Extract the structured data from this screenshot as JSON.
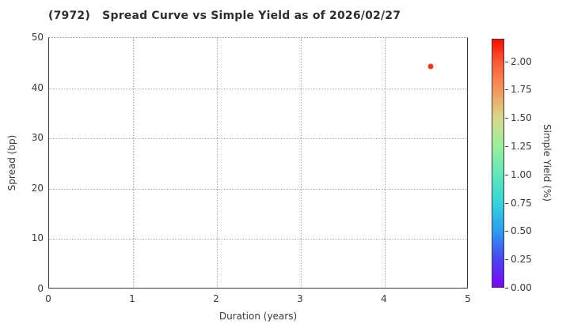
{
  "header": {
    "title": "(7972)   Spread Curve vs Simple Yield as of 2026/02/27"
  },
  "colors": {
    "background": "#ffffff",
    "spine": "#3a3a3a",
    "grid": "#b0b0b0",
    "title_text": "#2e2e2e",
    "tick_text": "#3a3a3a",
    "point": "#f2391d"
  },
  "chart_data": {
    "type": "scatter",
    "title": "(7972)   Spread Curve vs Simple Yield as of 2026/02/27",
    "xlabel": "Duration (years)",
    "ylabel": "Spread (bp)",
    "xlim": [
      0,
      5
    ],
    "ylim": [
      0,
      50
    ],
    "x_ticks": [
      "0",
      "1",
      "2",
      "3",
      "4",
      "5"
    ],
    "y_ticks": [
      "0",
      "10",
      "20",
      "30",
      "40",
      "50"
    ],
    "grid": true,
    "grid_style": "dotted",
    "points": [
      {
        "duration_years": 4.55,
        "spread_bp": 44.3,
        "simple_yield_pct": 2.15,
        "color": "#f2391d"
      }
    ],
    "colorbar": {
      "label": "Simple Yield (%)",
      "tick_labels": [
        "0.00",
        "0.25",
        "0.50",
        "0.75",
        "1.00",
        "1.25",
        "1.50",
        "1.75",
        "2.00"
      ],
      "range": [
        0,
        2.2
      ],
      "colormap": "rainbow",
      "gradient_stops": [
        {
          "pos": 0.0,
          "color": "#7c05fb"
        },
        {
          "pos": 0.114,
          "color": "#4a46f1"
        },
        {
          "pos": 0.227,
          "color": "#2b9df3"
        },
        {
          "pos": 0.341,
          "color": "#35d5da"
        },
        {
          "pos": 0.455,
          "color": "#5fe8b8"
        },
        {
          "pos": 0.568,
          "color": "#9bef9c"
        },
        {
          "pos": 0.682,
          "color": "#d8d88a"
        },
        {
          "pos": 0.795,
          "color": "#f4975d"
        },
        {
          "pos": 0.909,
          "color": "#fa5b35"
        },
        {
          "pos": 1.0,
          "color": "#fb0d00"
        }
      ]
    }
  }
}
